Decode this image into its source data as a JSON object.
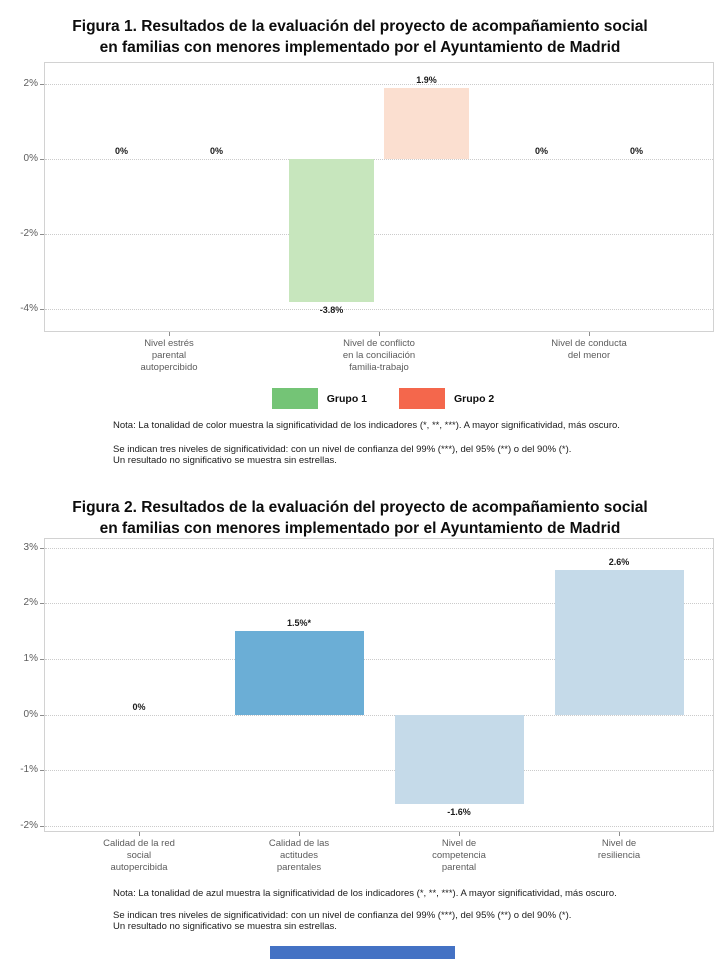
{
  "page": {
    "background": "#ffffff",
    "accent_bar_color": "#4472c4"
  },
  "chart_data": [
    {
      "figure": "Figura 1",
      "type": "bar",
      "title": "Figura 1. Resultados de la evaluación del proyecto de acompañamiento social\nen familias con menores implementado por el Ayuntamiento de Madrid",
      "categories": [
        "Nivel estrés\nparental\nautopercibido",
        "Nivel de conflicto\nen la conciliación\nfamilia-trabajo",
        "Nivel de conducta\ndel menor"
      ],
      "series": [
        {
          "name": "Grupo 1",
          "values": [
            0,
            -3.8,
            0
          ],
          "labels": [
            "0%",
            "-3.8%",
            "0%"
          ],
          "bar_color": "#c7e6bd",
          "legend_color": "#74c476"
        },
        {
          "name": "Grupo 2",
          "values": [
            0,
            1.9,
            0
          ],
          "labels": [
            "0%",
            "1.9%",
            "0%"
          ],
          "bar_color": "#fbdfd0",
          "legend_color": "#f4674c"
        }
      ],
      "xlabel": "",
      "ylabel": "",
      "yticks": [
        2,
        0,
        -2,
        -4
      ],
      "ytick_labels": [
        "2%",
        "0%",
        "-2%",
        "-4%"
      ],
      "ylim": [
        -4.6,
        2.6
      ],
      "grid": "horizontal-dotted",
      "legend_position": "bottom",
      "notes": [
        "Nota: La tonalidad de color muestra la significatividad de los indicadores (*, **, ***). A mayor significatividad, más oscuro.",
        "Se indican tres niveles de significatividad: con un nivel de confianza del 99% (***), del 95% (**) o del 90% (*).",
        "Un resultado no significativo se muestra sin estrellas."
      ]
    },
    {
      "figure": "Figura 2",
      "type": "bar",
      "title": "Figura 2. Resultados de la evaluación del proyecto de acompañamiento social\nen familias con menores implementado por el Ayuntamiento de Madrid",
      "categories": [
        "Calidad de la red\nsocial\nautopercibida",
        "Calidad de las\nactitudes\nparentales",
        "Nivel de\ncompetencia\nparental",
        "Nivel de\nresiliencia"
      ],
      "series": [
        {
          "values": [
            0,
            1.5,
            -1.6,
            2.6
          ],
          "labels": [
            "0%",
            "1.5%*",
            "-1.6%",
            "2.6%"
          ],
          "bar_colors": [
            "#c5dae9",
            "#6baed6",
            "#c5dae9",
            "#c5dae9"
          ]
        }
      ],
      "xlabel": "",
      "ylabel": "",
      "yticks": [
        3,
        2,
        1,
        0,
        -1,
        -2
      ],
      "ytick_labels": [
        "3%",
        "2%",
        "1%",
        "0%",
        "-1%",
        "-2%"
      ],
      "ylim": [
        -2.1,
        3.2
      ],
      "grid": "horizontal-dotted",
      "legend_position": "none",
      "notes": [
        "Nota: La tonalidad de azul muestra la significatividad de los indicadores (*, **, ***). A mayor significatividad, más oscuro.",
        "Se indican tres niveles de significatividad: con un nivel de confianza del 99% (***), del 95% (**) o del 90% (*).",
        "Un resultado no significativo se muestra sin estrellas."
      ]
    }
  ]
}
